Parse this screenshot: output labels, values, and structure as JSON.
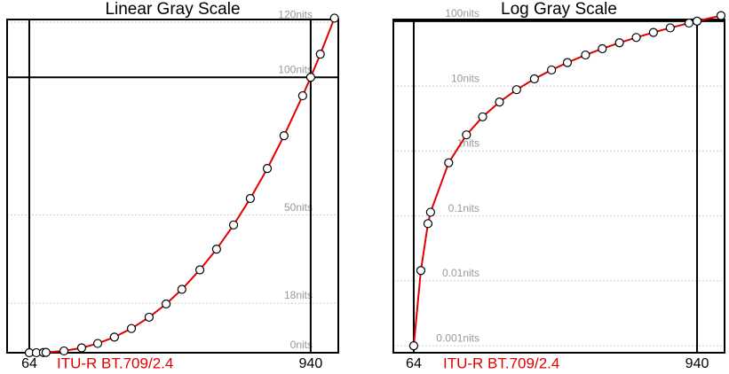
{
  "chart_data": [
    {
      "type": "line",
      "title": "Linear Gray Scale",
      "log": false,
      "x": [
        64,
        86,
        108,
        116,
        172,
        227,
        277,
        329,
        382,
        437,
        490,
        539,
        595,
        647,
        700,
        752,
        805,
        857,
        915,
        940,
        970,
        1014
      ],
      "xlim": [
        -5,
        1026
      ],
      "xticks": [
        64,
        940
      ],
      "ylim": [
        0,
        121
      ],
      "yticks": [
        {
          "value": 0,
          "label": "0nits"
        },
        {
          "value": 18,
          "label": "18nits"
        },
        {
          "value": 50,
          "label": "50nits"
        },
        {
          "value": 100,
          "label": "100nits"
        },
        {
          "value": 120,
          "label": "120nits"
        }
      ],
      "reference_line": 100,
      "grid": true,
      "series": [
        {
          "color": "#000000",
          "marker": true,
          "values": [
            0,
            0.0144,
            0.076,
            0.114,
            0.658,
            1.77,
            3.36,
            5.67,
            8.79,
            12.9,
            17.7,
            23.0,
            30.1,
            37.6,
            46.4,
            56.0,
            66.9,
            78.8,
            93.3,
            100,
            108.4,
            121.5
          ]
        },
        {
          "name": "ITU-R BT.709/2.4",
          "color": "#e00000",
          "values": [
            0,
            0.0144,
            0.076,
            0.114,
            0.658,
            1.77,
            3.36,
            5.67,
            8.79,
            12.9,
            17.7,
            23.0,
            30.1,
            37.6,
            46.4,
            56.0,
            66.9,
            78.8,
            93.3,
            100,
            108.4,
            121.5
          ]
        }
      ]
    },
    {
      "type": "line",
      "title": "Log Gray Scale",
      "log": true,
      "x": [
        64,
        86,
        108,
        116,
        172,
        227,
        277,
        329,
        382,
        437,
        490,
        539,
        595,
        647,
        700,
        752,
        805,
        857,
        915,
        940,
        1014
      ],
      "xlim": [
        1,
        1025
      ],
      "xticks": [
        64,
        940
      ],
      "ylim": [
        0.00078,
        106
      ],
      "yticks": [
        {
          "value": 0.001,
          "label": "0.001nits"
        },
        {
          "value": 0.01,
          "label": "0.01nits"
        },
        {
          "value": 0.1,
          "label": "0.1nits"
        },
        {
          "value": 1,
          "label": "1nits"
        },
        {
          "value": 10,
          "label": "10nits"
        },
        {
          "value": 100,
          "label": "100nits"
        }
      ],
      "reference_line": 100,
      "grid": true,
      "series": [
        {
          "color": "#000000",
          "marker": true,
          "values": [
            0.001,
            0.0144,
            0.076,
            0.114,
            0.658,
            1.77,
            3.36,
            5.67,
            8.79,
            12.9,
            17.7,
            23.0,
            30.1,
            37.6,
            46.4,
            56.0,
            66.9,
            78.8,
            93.3,
            100,
            121.5
          ]
        },
        {
          "name": "ITU-R BT.709/2.4",
          "color": "#e00000",
          "values": [
            0.001,
            0.0144,
            0.076,
            0.114,
            0.658,
            1.77,
            3.36,
            5.67,
            8.79,
            12.9,
            17.7,
            23.0,
            30.1,
            37.6,
            46.4,
            56.0,
            66.9,
            78.8,
            93.3,
            100,
            121.5
          ]
        }
      ]
    }
  ]
}
